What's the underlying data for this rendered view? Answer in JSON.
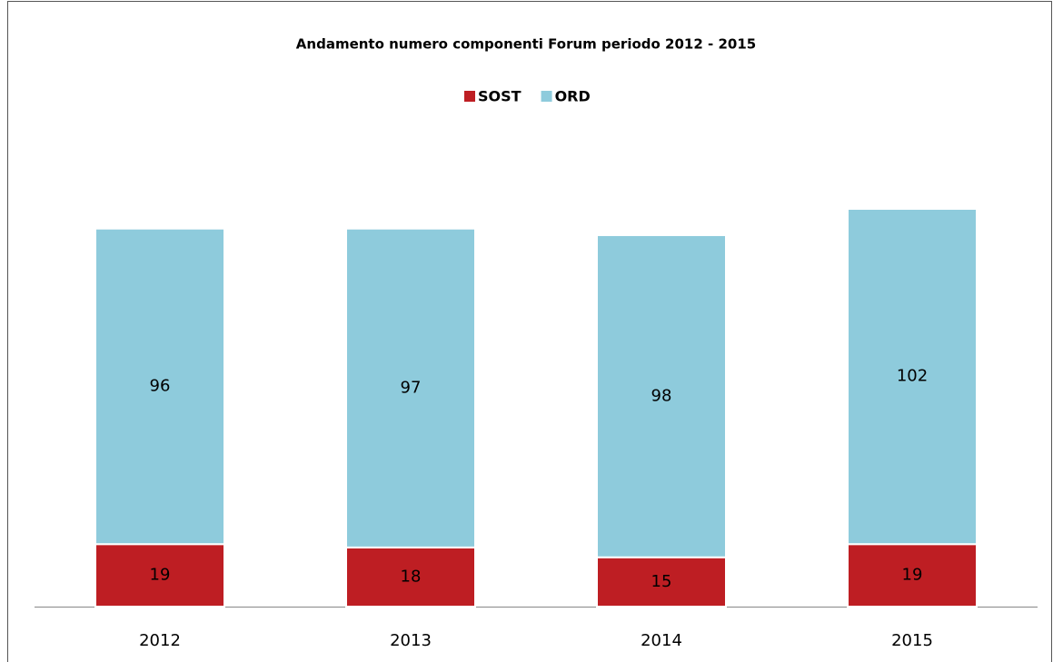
{
  "chart_data": {
    "type": "stacked_bar",
    "title": "Andamento numero componenti Forum periodo 2012 - 2015",
    "categories": [
      "2012",
      "2013",
      "2014",
      "2015"
    ],
    "series": [
      {
        "name": "SOST",
        "color": "#be1e23",
        "values": [
          19,
          18,
          15,
          19
        ]
      },
      {
        "name": "ORD",
        "color": "#8ecbdc",
        "values": [
          96,
          97,
          98,
          102
        ]
      }
    ],
    "legend": "top"
  }
}
